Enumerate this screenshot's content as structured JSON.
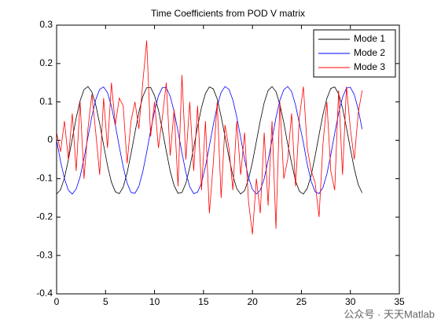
{
  "chart_data": {
    "type": "line",
    "title": "Time Coefficients from POD V matrix",
    "x": [
      0,
      0.4,
      0.8,
      1.2,
      1.6,
      2.0,
      2.4,
      2.8,
      3.2,
      3.6,
      4.0,
      4.4,
      4.8,
      5.2,
      5.6,
      6.0,
      6.4,
      6.8,
      7.2,
      7.6,
      8.0,
      8.4,
      8.8,
      9.2,
      9.6,
      10.0,
      10.4,
      10.8,
      11.2,
      11.6,
      12.0,
      12.4,
      12.8,
      13.2,
      13.6,
      14.0,
      14.4,
      14.8,
      15.2,
      15.6,
      16.0,
      16.4,
      16.8,
      17.2,
      17.6,
      18.0,
      18.4,
      18.8,
      19.2,
      19.6,
      20.0,
      20.4,
      20.8,
      21.2,
      21.6,
      22.0,
      22.4,
      22.8,
      23.2,
      23.6,
      24.0,
      24.4,
      24.8,
      25.2,
      25.6,
      26.0,
      26.4,
      26.8,
      27.2,
      27.6,
      28.0,
      28.4,
      28.8,
      29.2,
      29.6,
      30.0,
      30.4,
      30.8,
      31.2
    ],
    "series": [
      {
        "name": "Mode 1",
        "color": "#000000",
        "values": [
          -0.14,
          -0.129,
          -0.098,
          -0.051,
          0.004,
          0.058,
          0.103,
          0.132,
          0.14,
          0.126,
          0.092,
          0.043,
          -0.012,
          -0.066,
          -0.109,
          -0.134,
          -0.139,
          -0.122,
          -0.085,
          -0.035,
          0.02,
          0.073,
          0.114,
          0.137,
          0.138,
          0.117,
          0.079,
          0.027,
          -0.028,
          -0.08,
          -0.118,
          -0.138,
          -0.136,
          -0.112,
          -0.07,
          -0.019,
          0.036,
          0.086,
          0.122,
          0.139,
          0.134,
          0.108,
          0.062,
          0.01,
          -0.044,
          -0.092,
          -0.126,
          -0.14,
          -0.131,
          -0.101,
          -0.057,
          -0.003,
          0.051,
          0.098,
          0.13,
          0.14,
          0.127,
          0.093,
          0.046,
          -0.01,
          -0.059,
          -0.106,
          -0.133,
          -0.14,
          -0.125,
          -0.091,
          -0.041,
          0.014,
          0.067,
          0.109,
          0.135,
          0.139,
          0.121,
          0.084,
          0.033,
          -0.022,
          -0.074,
          -0.115,
          -0.137
        ]
      },
      {
        "name": "Mode 2",
        "color": "#0000ff",
        "values": [
          0,
          -0.054,
          -0.1,
          -0.13,
          -0.14,
          -0.127,
          -0.095,
          -0.047,
          0.008,
          0.062,
          0.106,
          0.133,
          0.139,
          0.124,
          0.088,
          0.039,
          -0.016,
          -0.069,
          -0.111,
          -0.136,
          -0.138,
          -0.12,
          -0.082,
          -0.031,
          0.025,
          0.076,
          0.116,
          0.137,
          0.137,
          0.115,
          0.075,
          0.023,
          -0.032,
          -0.084,
          -0.121,
          -0.139,
          -0.135,
          -0.111,
          -0.068,
          -0.015,
          0.04,
          0.089,
          0.125,
          0.14,
          0.133,
          0.105,
          0.061,
          0.007,
          -0.05,
          -0.097,
          -0.128,
          -0.14,
          -0.13,
          -0.1,
          -0.052,
          0.001,
          0.059,
          0.104,
          0.132,
          0.14,
          0.127,
          0.092,
          0.043,
          -0.006,
          -0.063,
          -0.107,
          -0.134,
          -0.139,
          -0.123,
          -0.088,
          -0.038,
          0.018,
          0.071,
          0.112,
          0.136,
          0.138,
          0.119,
          0.081,
          0.029
        ]
      },
      {
        "name": "Mode 3",
        "color": "#ff0000",
        "values": [
          0.02,
          -0.03,
          0.05,
          -0.05,
          0.07,
          -0.08,
          0.1,
          -0.1,
          0.03,
          0.12,
          0.02,
          -0.09,
          0.11,
          -0.02,
          0.15,
          0.04,
          0.11,
          0.09,
          -0.06,
          0.05,
          0.1,
          0.03,
          0.15,
          0.26,
          0.01,
          0.1,
          -0.02,
          0.06,
          0.15,
          -0.04,
          0.08,
          -0.12,
          0.17,
          -0.05,
          0.1,
          -0.08,
          0.09,
          -0.13,
          0.05,
          -0.19,
          -0.06,
          0.1,
          -0.15,
          0.04,
          -0.02,
          -0.13,
          0.05,
          -0.09,
          0.02,
          -0.16,
          -0.245,
          -0.1,
          -0.19,
          0.02,
          -0.17,
          0.05,
          -0.23,
          0.1,
          -0.1,
          -0.05,
          0.07,
          -0.12,
          0.06,
          0.14,
          -0.02,
          -0.08,
          -0.11,
          -0.2,
          -0.01,
          0.1,
          -0.08,
          -0.13,
          0.13,
          -0.09,
          0.14,
          0.03,
          -0.05,
          0.07,
          0.13
        ]
      }
    ],
    "xlim": [
      0,
      35
    ],
    "xticks": [
      0,
      5,
      10,
      15,
      20,
      25,
      30,
      35
    ],
    "ylim": [
      -0.4,
      0.3
    ],
    "yticks": [
      -0.4,
      -0.3,
      -0.2,
      -0.1,
      0,
      0.1,
      0.2,
      0.3
    ],
    "legend": "top-right",
    "watermark": "公众号 · 天天Matlab"
  }
}
